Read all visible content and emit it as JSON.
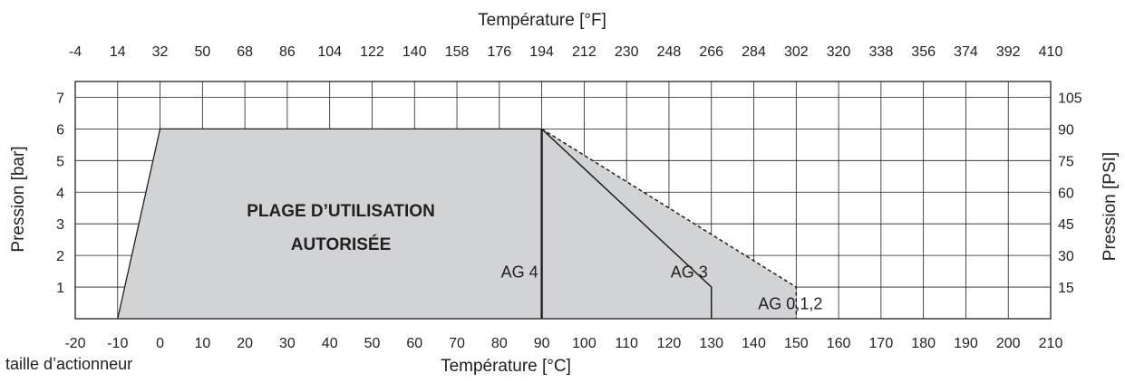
{
  "chart_data": {
    "type": "area",
    "title": "",
    "xlabel_top": "Température [°F]",
    "xlabel_bottom": "Température [°C]",
    "ylabel_left": "Pression [bar]",
    "ylabel_right": "Pression [PSI]",
    "caption": "taille d’actionneur",
    "region_label_line1": "PLAGE D’UTILISATION",
    "region_label_line2": "AUTORISÉE",
    "xlim": [
      -20,
      210
    ],
    "ylim": [
      0,
      7.5
    ],
    "grid": true,
    "x_ticks_c": [
      "-20",
      "-10",
      "0",
      "10",
      "20",
      "30",
      "40",
      "50",
      "60",
      "70",
      "80",
      "90",
      "100",
      "110",
      "120",
      "130",
      "140",
      "150",
      "160",
      "170",
      "180",
      "190",
      "200",
      "210"
    ],
    "x_ticks_f": [
      "-4",
      "14",
      "32",
      "50",
      "68",
      "86",
      "104",
      "122",
      "140",
      "158",
      "176",
      "194",
      "212",
      "230",
      "248",
      "266",
      "284",
      "302",
      "320",
      "338",
      "356",
      "374",
      "392",
      "410"
    ],
    "y_ticks_bar": [
      "1",
      "2",
      "3",
      "4",
      "5",
      "6",
      "7"
    ],
    "y_ticks_psi": [
      "15",
      "30",
      "45",
      "60",
      "75",
      "90",
      "105"
    ],
    "envelope": {
      "x": [
        -10,
        0,
        90,
        150,
        150
      ],
      "y": [
        0,
        6,
        6,
        1,
        0
      ]
    },
    "series": [
      {
        "name": "AG 4",
        "x": [
          90,
          90
        ],
        "y": [
          6,
          0
        ],
        "style": "solid-thick"
      },
      {
        "name": "AG 3",
        "x": [
          90,
          130,
          130
        ],
        "y": [
          6,
          1,
          0
        ],
        "style": "solid"
      },
      {
        "name": "AG 0,1,2",
        "x": [
          90,
          150,
          150
        ],
        "y": [
          6,
          1,
          0
        ],
        "style": "dashed"
      }
    ],
    "colors": {
      "fill": "#d1d3d4",
      "line": "#231f20",
      "grid": "#231f20"
    }
  }
}
